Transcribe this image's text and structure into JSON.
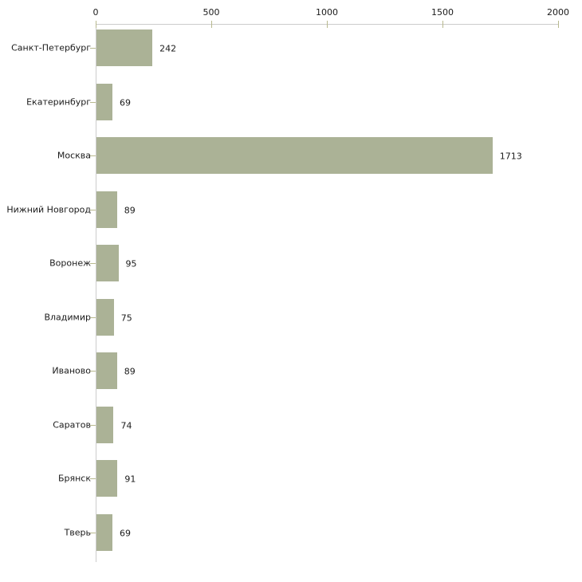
{
  "chart_data": {
    "type": "bar",
    "orientation": "horizontal",
    "title": "",
    "xlabel": "",
    "ylabel": "",
    "categories": [
      "Санкт-Петербург",
      "Екатеринбург",
      "Москва",
      "Нижний Новгород",
      "Воронеж",
      "Владимир",
      "Иваново",
      "Саратов",
      "Брянск",
      "Тверь"
    ],
    "values": [
      242,
      69,
      1713,
      89,
      95,
      75,
      89,
      74,
      91,
      69
    ],
    "xlim": [
      0,
      2000
    ],
    "x_ticks": [
      0,
      500,
      1000,
      1500,
      2000
    ],
    "x_tick_labels": [
      "0",
      "500",
      "1000",
      "1500",
      "2000"
    ],
    "value_labels": [
      "242",
      "69",
      "1713",
      "89",
      "95",
      "75",
      "89",
      "74",
      "91",
      "69"
    ],
    "grid": false,
    "legend": null,
    "axis_position": "top",
    "colors": {
      "bar_fill": "#abb296",
      "axis_line": "#cccccc",
      "tick_mark": "#b8b98e",
      "text": "#1a1a1a",
      "background": "#ffffff"
    }
  }
}
